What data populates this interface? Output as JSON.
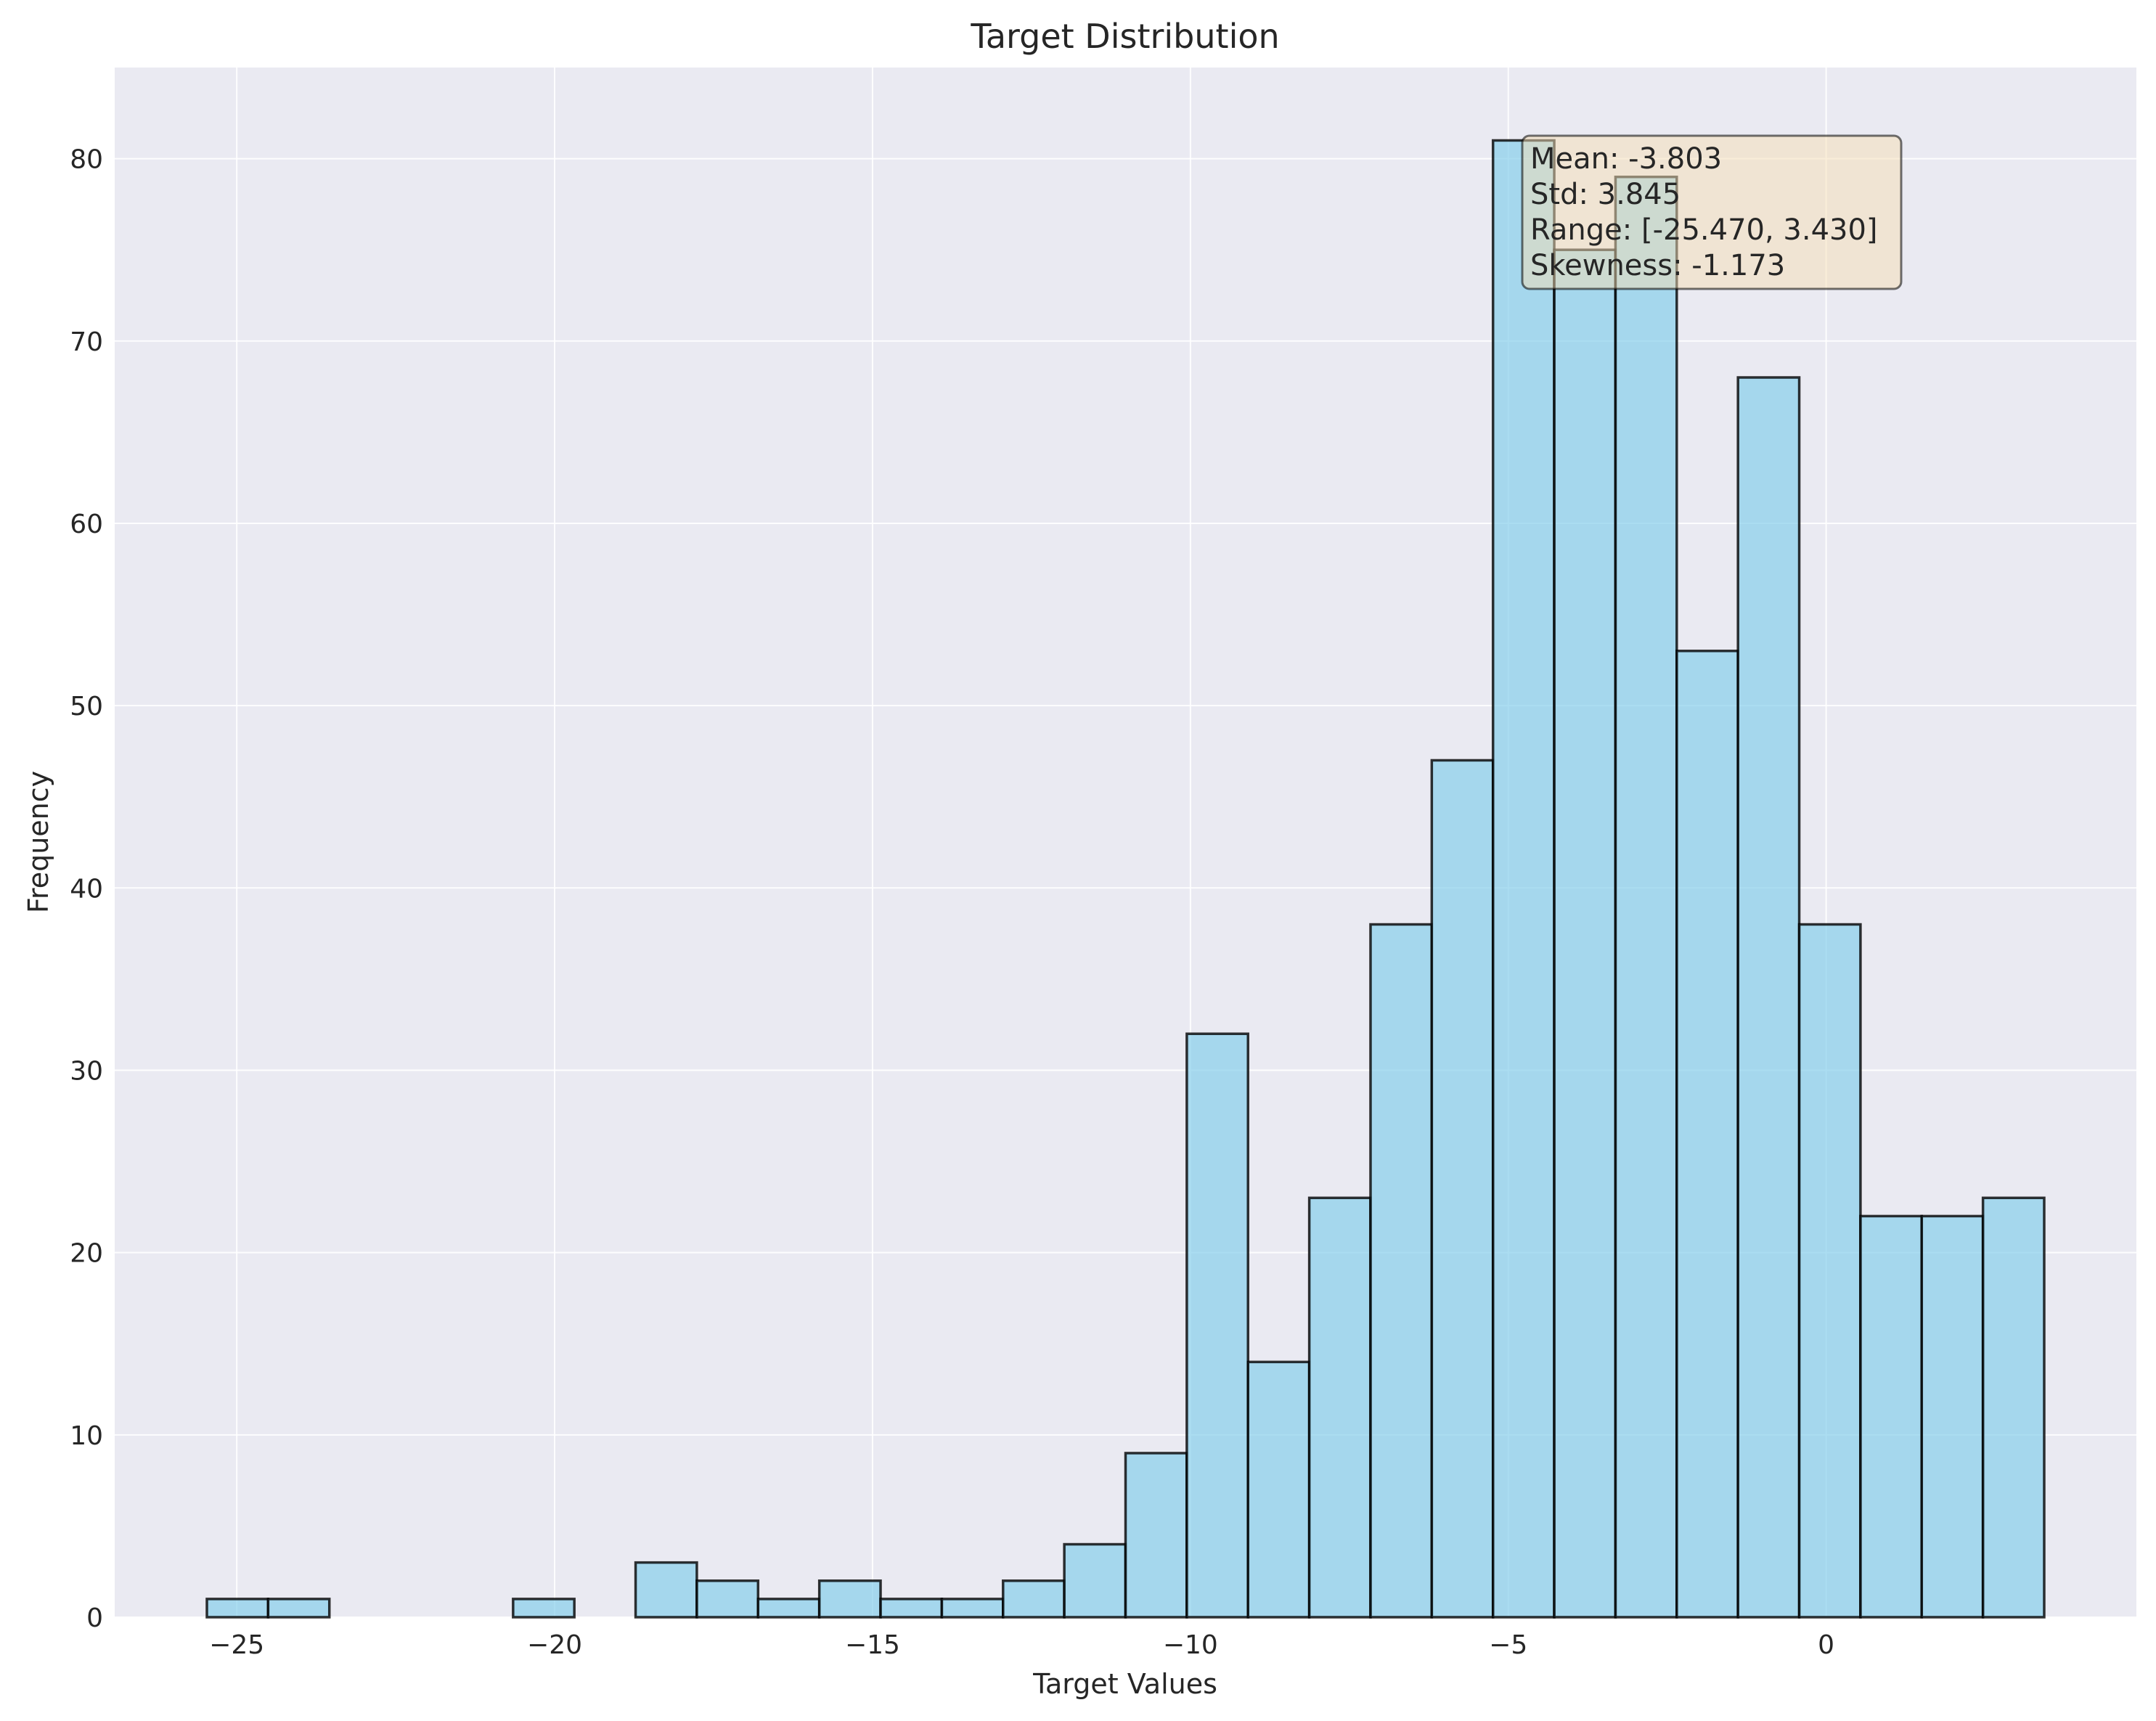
{
  "chart_data": {
    "type": "bar",
    "subtype": "histogram",
    "title": "Target Distribution",
    "xlabel": "Target Values",
    "ylabel": "Frequency",
    "xlim": [
      -26.92,
      4.88
    ],
    "ylim": [
      0,
      85
    ],
    "xticks": [
      -25,
      -20,
      -15,
      -10,
      -5,
      0
    ],
    "xtick_labels": [
      "−25",
      "−20",
      "−15",
      "−10",
      "−5",
      "0"
    ],
    "yticks": [
      0,
      10,
      20,
      30,
      40,
      50,
      60,
      70,
      80
    ],
    "ytick_labels": [
      "0",
      "10",
      "20",
      "30",
      "40",
      "50",
      "60",
      "70",
      "80"
    ],
    "grid": true,
    "bin_range": [
      -25.47,
      3.43
    ],
    "bin_count": 30,
    "counts": [
      1,
      1,
      0,
      0,
      0,
      1,
      0,
      3,
      2,
      1,
      2,
      1,
      1,
      2,
      4,
      9,
      32,
      14,
      23,
      38,
      47,
      81,
      75,
      79,
      53,
      68,
      38,
      22,
      22,
      23
    ],
    "bar_color": "#87CEEB",
    "edge_color": "#000000",
    "background_color": "#EAEAF2",
    "stats_box": {
      "lines": [
        "Mean: -3.803",
        "Std: 3.845",
        "Range: [-25.470, 3.430]",
        "Skewness: -1.173"
      ],
      "placement": "top-right",
      "color": "#F5DEB3"
    }
  }
}
